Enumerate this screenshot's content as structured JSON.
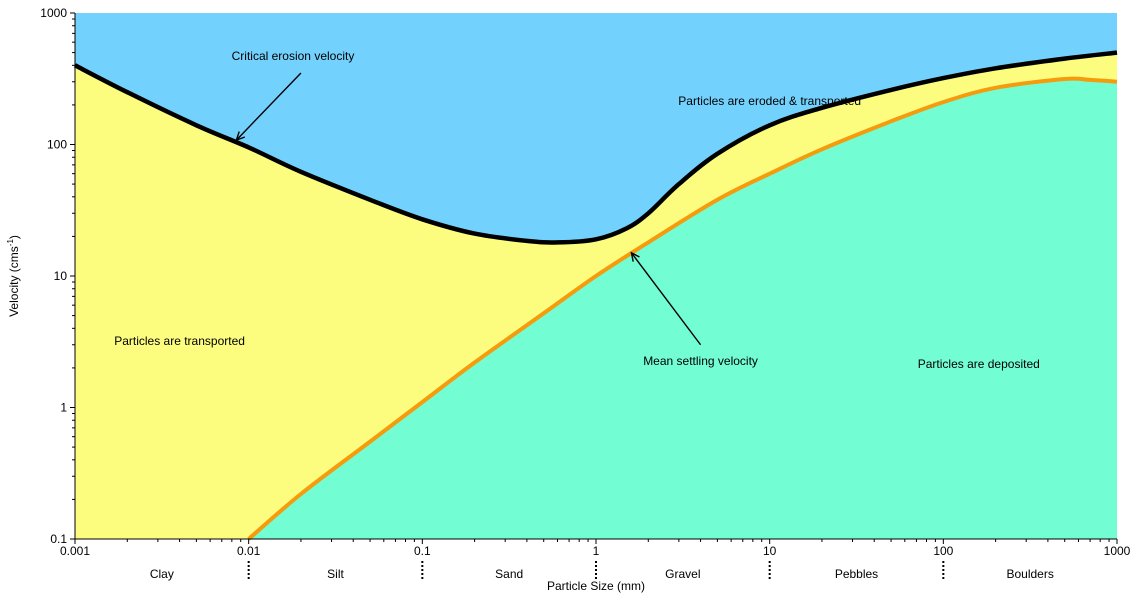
{
  "chart_data": {
    "type": "area",
    "xlabel": "Particle Size (mm)",
    "ylabel": "Velocity (cms",
    "ylabel_superscript": "-1",
    "ylabel_suffix": ")",
    "x_scale": "log",
    "y_scale": "log",
    "xlim": [
      0.001,
      1000
    ],
    "ylim": [
      0.1,
      1000
    ],
    "x_ticks": [
      {
        "value": 0.001,
        "label": "0.001"
      },
      {
        "value": 0.01,
        "label": "0.01"
      },
      {
        "value": 0.1,
        "label": "0.1"
      },
      {
        "value": 1,
        "label": "1"
      },
      {
        "value": 10,
        "label": "10"
      },
      {
        "value": 100,
        "label": "100"
      },
      {
        "value": 1000,
        "label": "1000"
      }
    ],
    "y_ticks": [
      {
        "value": 0.1,
        "label": "0.1"
      },
      {
        "value": 1,
        "label": "1"
      },
      {
        "value": 10,
        "label": "10"
      },
      {
        "value": 100,
        "label": "100"
      },
      {
        "value": 1000,
        "label": "1000"
      }
    ],
    "grid": false,
    "series": [
      {
        "name": "Critical erosion velocity",
        "color": "#000000",
        "points": [
          {
            "x": 0.001,
            "y": 400
          },
          {
            "x": 0.002,
            "y": 250
          },
          {
            "x": 0.005,
            "y": 140
          },
          {
            "x": 0.01,
            "y": 95
          },
          {
            "x": 0.02,
            "y": 62
          },
          {
            "x": 0.05,
            "y": 38
          },
          {
            "x": 0.1,
            "y": 27
          },
          {
            "x": 0.2,
            "y": 21
          },
          {
            "x": 0.4,
            "y": 18.5
          },
          {
            "x": 0.6,
            "y": 18
          },
          {
            "x": 1,
            "y": 19
          },
          {
            "x": 1.5,
            "y": 23
          },
          {
            "x": 2,
            "y": 30
          },
          {
            "x": 3,
            "y": 50
          },
          {
            "x": 5,
            "y": 85
          },
          {
            "x": 10,
            "y": 140
          },
          {
            "x": 20,
            "y": 190
          },
          {
            "x": 50,
            "y": 260
          },
          {
            "x": 100,
            "y": 320
          },
          {
            "x": 200,
            "y": 380
          },
          {
            "x": 500,
            "y": 450
          },
          {
            "x": 1000,
            "y": 500
          }
        ]
      },
      {
        "name": "Mean settling velocity",
        "color": "#f59b0c",
        "points": [
          {
            "x": 0.01,
            "y": 0.1
          },
          {
            "x": 0.02,
            "y": 0.22
          },
          {
            "x": 0.05,
            "y": 0.55
          },
          {
            "x": 0.1,
            "y": 1.1
          },
          {
            "x": 0.2,
            "y": 2.2
          },
          {
            "x": 0.5,
            "y": 5.2
          },
          {
            "x": 1,
            "y": 10
          },
          {
            "x": 2,
            "y": 18
          },
          {
            "x": 5,
            "y": 38
          },
          {
            "x": 10,
            "y": 60
          },
          {
            "x": 20,
            "y": 92
          },
          {
            "x": 50,
            "y": 150
          },
          {
            "x": 100,
            "y": 210
          },
          {
            "x": 200,
            "y": 270
          },
          {
            "x": 500,
            "y": 315
          },
          {
            "x": 700,
            "y": 310
          },
          {
            "x": 1000,
            "y": 300
          }
        ]
      }
    ],
    "regions": [
      {
        "label": "Particles are eroded & transported",
        "color": "#73d2fd",
        "x": 10,
        "y": 200
      },
      {
        "label": "Particles are transported",
        "color": "#fcfc7f",
        "x": 0.004,
        "y": 3
      },
      {
        "label": "Particles are deposited",
        "color": "#72fdd3",
        "x": 160,
        "y": 2
      }
    ],
    "annotations": [
      {
        "text": "Critical erosion velocity",
        "text_x": 0.018,
        "text_y": 440,
        "arrow_from": [
          0.02,
          350
        ],
        "arrow_to": [
          0.0085,
          108
        ]
      },
      {
        "text": "Mean settling velocity",
        "text_x": 4,
        "text_y": 2.1,
        "arrow_from": [
          4,
          3
        ],
        "arrow_to": [
          1.6,
          15
        ]
      }
    ],
    "size_classes": [
      {
        "label": "Clay",
        "from": 0.001,
        "to": 0.01
      },
      {
        "label": "Silt",
        "from": 0.01,
        "to": 0.1
      },
      {
        "label": "Sand",
        "from": 0.1,
        "to": 1
      },
      {
        "label": "Gravel",
        "from": 1,
        "to": 10
      },
      {
        "label": "Pebbles",
        "from": 10,
        "to": 100
      },
      {
        "label": "Boulders",
        "from": 100,
        "to": 1000
      }
    ],
    "class_boundaries": [
      0.01,
      0.1,
      1,
      10,
      100
    ]
  }
}
